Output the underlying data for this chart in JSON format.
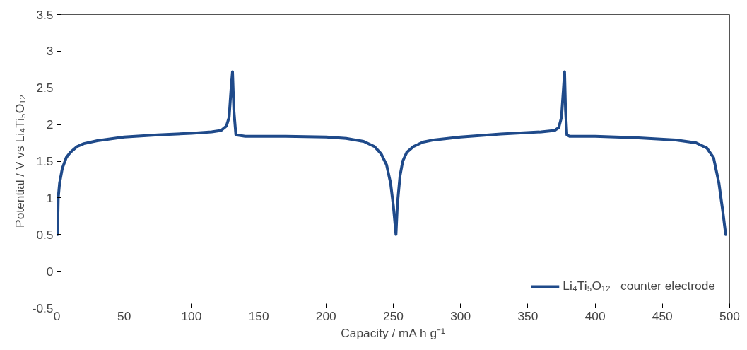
{
  "chart_data": {
    "type": "line",
    "xlabel": "Capacity / mA h g⁻¹",
    "ylabel": "Potential / V vs Li₄Ti₅O₁₂",
    "xlim": [
      0,
      500
    ],
    "xticks": [
      0,
      50,
      100,
      150,
      200,
      250,
      300,
      350,
      400,
      450,
      500
    ],
    "ylim": [
      -0.5,
      3.5
    ],
    "yticks": [
      -0.5,
      0,
      0.5,
      1,
      1.5,
      2,
      2.5,
      3,
      3.5
    ],
    "grid": false,
    "legend": "bottom right",
    "marker": "none",
    "line_style": "solid",
    "series": [
      {
        "name": "Li₄Ti₅O₁₂   counter electrode",
        "color": "#1f4a8a",
        "x": [
          0.5,
          1,
          2,
          4,
          7,
          10,
          15,
          20,
          30,
          50,
          75,
          100,
          115,
          122,
          126,
          128,
          129.5,
          130.5,
          131.5,
          133,
          140,
          170,
          200,
          215,
          228,
          236,
          241,
          245,
          248,
          250,
          251.5,
          252,
          253,
          255,
          257,
          260,
          265,
          272,
          280,
          300,
          330,
          360,
          370,
          373,
          375,
          376.5,
          377.3,
          378,
          379,
          381,
          400,
          430,
          460,
          475,
          483,
          488,
          492,
          495,
          497
        ],
        "values": [
          0.5,
          1.0,
          1.2,
          1.4,
          1.55,
          1.62,
          1.7,
          1.74,
          1.78,
          1.83,
          1.86,
          1.88,
          1.9,
          1.92,
          1.98,
          2.1,
          2.5,
          2.72,
          2.2,
          1.86,
          1.84,
          1.84,
          1.83,
          1.81,
          1.77,
          1.7,
          1.6,
          1.45,
          1.2,
          0.9,
          0.6,
          0.5,
          0.9,
          1.3,
          1.5,
          1.62,
          1.7,
          1.76,
          1.79,
          1.83,
          1.87,
          1.9,
          1.92,
          1.96,
          2.1,
          2.5,
          2.72,
          2.2,
          1.86,
          1.84,
          1.84,
          1.82,
          1.79,
          1.75,
          1.68,
          1.55,
          1.2,
          0.8,
          0.5
        ]
      }
    ]
  }
}
